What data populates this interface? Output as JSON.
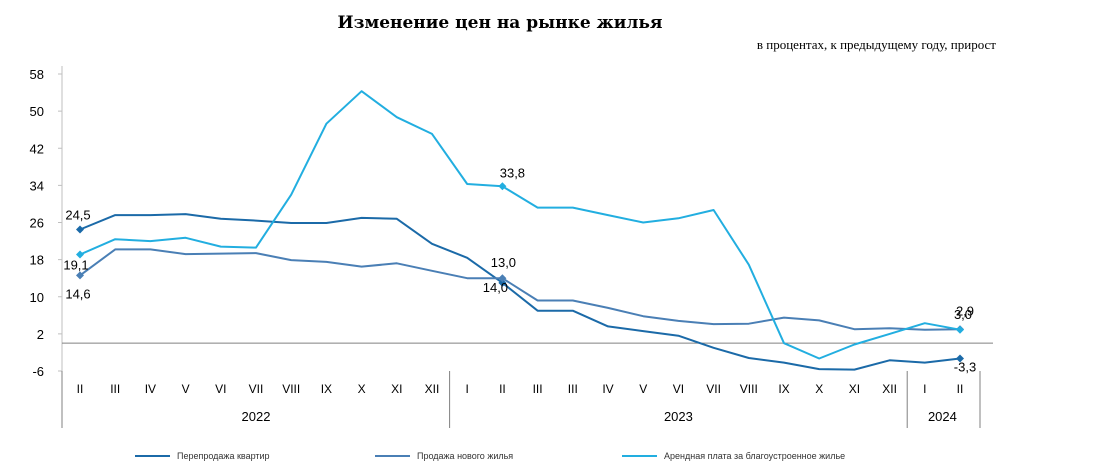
{
  "chart_data": {
    "type": "line",
    "title": "Изменение цен на рынке жилья",
    "subtitle": "в процентах, к предыдущему году, прирост",
    "y_ticks": [
      -6,
      2,
      10,
      18,
      26,
      34,
      42,
      50,
      58
    ],
    "ylim": [
      -6,
      58
    ],
    "categories": [
      "II",
      "III",
      "IV",
      "V",
      "VI",
      "VII",
      "VIII",
      "IX",
      "X",
      "XI",
      "XII",
      "I",
      "II",
      "III",
      "III",
      "IV",
      "V",
      "VI",
      "VII",
      "VIII",
      "IX",
      "X",
      "XI",
      "XII",
      "I",
      "II"
    ],
    "year_groups": [
      {
        "label": "2022",
        "start": 0,
        "end": 10
      },
      {
        "label": "2023",
        "start": 11,
        "end": 23
      },
      {
        "label": "2024",
        "start": 24,
        "end": 25
      }
    ],
    "series": [
      {
        "name": "Перепродажа квартир",
        "color": "#1b6aa8",
        "values": [
          24.5,
          27.6,
          27.6,
          27.8,
          26.8,
          26.4,
          25.9,
          25.9,
          27.0,
          26.8,
          21.4,
          18.4,
          13.0,
          7.0,
          7.0,
          3.6,
          2.6,
          1.6,
          -1.0,
          -3.2,
          -4.2,
          -5.6,
          -5.7,
          -3.7,
          -4.2,
          -3.3
        ],
        "markers": [
          0,
          12,
          25
        ]
      },
      {
        "name": "Продажа нового жилья",
        "color": "#4a7fb5",
        "values": [
          14.6,
          20.2,
          20.2,
          19.2,
          19.3,
          19.4,
          17.9,
          17.5,
          16.5,
          17.2,
          15.6,
          14.0,
          14.0,
          9.2,
          9.2,
          7.6,
          5.8,
          4.8,
          4.1,
          4.2,
          5.5,
          4.9,
          3.0,
          3.2,
          2.9,
          3.0
        ],
        "markers": [
          0,
          12,
          25
        ]
      },
      {
        "name": "Арендная плата за благоустроенное жилье",
        "color": "#22aee0",
        "values": [
          19.1,
          22.4,
          22.0,
          22.7,
          20.8,
          20.6,
          32.0,
          47.3,
          54.3,
          48.7,
          45.1,
          34.3,
          33.8,
          29.2,
          29.2,
          27.6,
          26.0,
          26.9,
          28.7,
          16.9,
          0.0,
          -3.3,
          -0.3,
          2.0,
          4.3,
          2.9
        ],
        "markers": [
          0,
          12,
          25
        ]
      }
    ],
    "data_labels": [
      {
        "text": "24,5",
        "series": 0,
        "index": 0
      },
      {
        "text": "19,1",
        "series": 2,
        "index": 0
      },
      {
        "text": "14,6",
        "series": 1,
        "index": 0
      },
      {
        "text": "33,8",
        "series": 2,
        "index": 12
      },
      {
        "text": "13,0",
        "series": 0,
        "index": 12
      },
      {
        "text": "14,0",
        "series": 1,
        "index": 12
      },
      {
        "text": "2,9",
        "series": 2,
        "index": 25
      },
      {
        "text": "3,0",
        "series": 1,
        "index": 25
      },
      {
        "text": "-3,3",
        "series": 0,
        "index": 25
      }
    ],
    "legend_position": "bottom",
    "grid": false
  }
}
